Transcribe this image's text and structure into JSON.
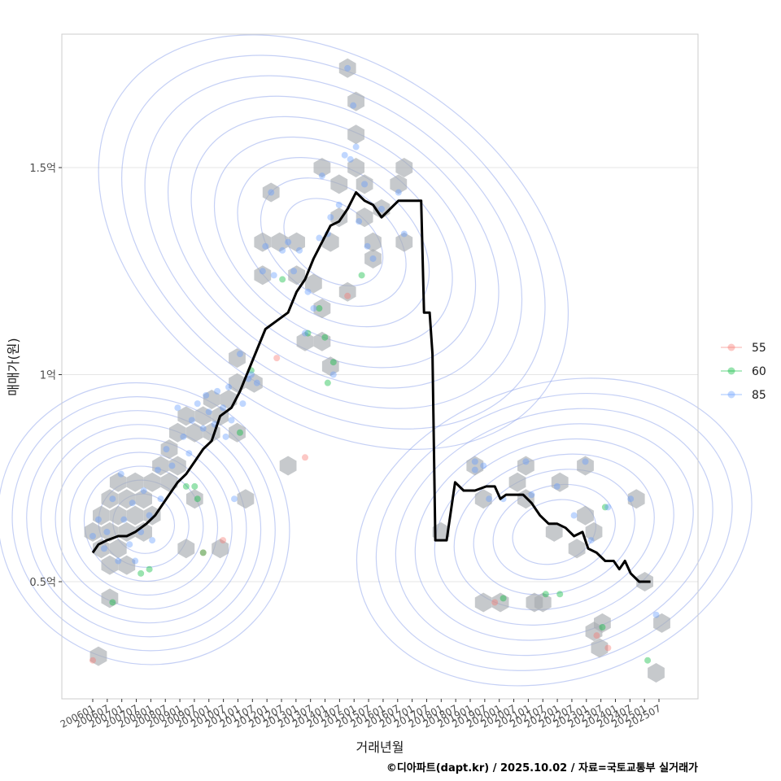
{
  "chart_data": {
    "type": "scatter",
    "xlabel": "거래년월",
    "ylabel": "매매가(원)",
    "caption": "©디아파트(dapt.kr) / 2025.10.02 / 자료=국토교통부 실거래가",
    "y_ticks": [
      {
        "value": 0.5,
        "label": "0.5억"
      },
      {
        "value": 1.0,
        "label": "1억"
      },
      {
        "value": 1.5,
        "label": "1.5억"
      }
    ],
    "x_ticks": [
      "200601",
      "200607",
      "200701",
      "200707",
      "200801",
      "200807",
      "200901",
      "200907",
      "201001",
      "201007",
      "201101",
      "201107",
      "201201",
      "201207",
      "201301",
      "201307",
      "201401",
      "201407",
      "201501",
      "201507",
      "201601",
      "201607",
      "201701",
      "201707",
      "201801",
      "201807",
      "201901",
      "201907",
      "202001",
      "202007",
      "202101",
      "202107",
      "202201",
      "202207",
      "202301",
      "202307",
      "202401",
      "202407",
      "202501",
      "202507"
    ],
    "legend": [
      {
        "label": "55",
        "color": "#f8766d"
      },
      {
        "label": "60",
        "color": "#00ba38"
      },
      {
        "label": "85",
        "color": "#619cff"
      }
    ],
    "colors": {
      "line": "#000000",
      "hex": "#a8acb0",
      "contour": "#7f96e8",
      "grid": "#e5e5e5",
      "panel_border": "#cccccc"
    },
    "series_line": {
      "name": "월별 대표 매매가 추세",
      "points": [
        [
          2006.0,
          0.57
        ],
        [
          2006.2,
          0.59
        ],
        [
          2006.5,
          0.6
        ],
        [
          2006.9,
          0.61
        ],
        [
          2007.2,
          0.61
        ],
        [
          2007.5,
          0.62
        ],
        [
          2007.9,
          0.64
        ],
        [
          2008.2,
          0.66
        ],
        [
          2008.5,
          0.69
        ],
        [
          2008.8,
          0.72
        ],
        [
          2009.0,
          0.74
        ],
        [
          2009.3,
          0.76
        ],
        [
          2009.6,
          0.79
        ],
        [
          2009.9,
          0.82
        ],
        [
          2010.2,
          0.84
        ],
        [
          2010.5,
          0.9
        ],
        [
          2010.9,
          0.92
        ],
        [
          2011.2,
          0.96
        ],
        [
          2011.5,
          1.01
        ],
        [
          2011.8,
          1.06
        ],
        [
          2012.1,
          1.11
        ],
        [
          2012.5,
          1.13
        ],
        [
          2012.9,
          1.15
        ],
        [
          2013.2,
          1.2
        ],
        [
          2013.5,
          1.23
        ],
        [
          2013.8,
          1.28
        ],
        [
          2014.1,
          1.32
        ],
        [
          2014.4,
          1.36
        ],
        [
          2014.7,
          1.37
        ],
        [
          2015.0,
          1.4
        ],
        [
          2015.3,
          1.44
        ],
        [
          2015.6,
          1.42
        ],
        [
          2015.9,
          1.41
        ],
        [
          2016.2,
          1.38
        ],
        [
          2016.5,
          1.4
        ],
        [
          2016.8,
          1.42
        ],
        [
          2017.1,
          1.42
        ],
        [
          2017.4,
          1.42
        ],
        [
          2017.6,
          1.42
        ],
        [
          2017.7,
          1.15
        ],
        [
          2017.9,
          1.15
        ],
        [
          2018.0,
          1.05
        ],
        [
          2018.1,
          0.6
        ],
        [
          2018.5,
          0.6
        ],
        [
          2018.8,
          0.74
        ],
        [
          2019.1,
          0.72
        ],
        [
          2019.5,
          0.72
        ],
        [
          2019.9,
          0.73
        ],
        [
          2020.2,
          0.73
        ],
        [
          2020.4,
          0.7
        ],
        [
          2020.6,
          0.71
        ],
        [
          2020.9,
          0.71
        ],
        [
          2021.2,
          0.71
        ],
        [
          2021.5,
          0.69
        ],
        [
          2021.8,
          0.66
        ],
        [
          2022.1,
          0.64
        ],
        [
          2022.4,
          0.64
        ],
        [
          2022.7,
          0.63
        ],
        [
          2023.0,
          0.61
        ],
        [
          2023.3,
          0.62
        ],
        [
          2023.5,
          0.58
        ],
        [
          2023.8,
          0.57
        ],
        [
          2024.1,
          0.55
        ],
        [
          2024.4,
          0.55
        ],
        [
          2024.6,
          0.53
        ],
        [
          2024.8,
          0.55
        ],
        [
          2025.0,
          0.52
        ],
        [
          2025.3,
          0.5
        ],
        [
          2025.7,
          0.5
        ]
      ]
    },
    "hexbins": [
      [
        2006.0,
        0.62
      ],
      [
        2006.3,
        0.66
      ],
      [
        2006.3,
        0.58
      ],
      [
        2006.6,
        0.7
      ],
      [
        2006.6,
        0.62
      ],
      [
        2006.6,
        0.54
      ],
      [
        2006.9,
        0.74
      ],
      [
        2006.9,
        0.66
      ],
      [
        2006.9,
        0.58
      ],
      [
        2007.2,
        0.7
      ],
      [
        2007.2,
        0.62
      ],
      [
        2007.2,
        0.54
      ],
      [
        2007.5,
        0.74
      ],
      [
        2007.5,
        0.66
      ],
      [
        2007.8,
        0.7
      ],
      [
        2007.8,
        0.62
      ],
      [
        2008.1,
        0.74
      ],
      [
        2008.1,
        0.66
      ],
      [
        2008.4,
        0.78
      ],
      [
        2008.7,
        0.82
      ],
      [
        2008.7,
        0.74
      ],
      [
        2009.0,
        0.86
      ],
      [
        2009.0,
        0.78
      ],
      [
        2009.3,
        0.9
      ],
      [
        2009.6,
        0.86
      ],
      [
        2009.9,
        0.9
      ],
      [
        2010.2,
        0.94
      ],
      [
        2010.2,
        0.86
      ],
      [
        2010.5,
        0.9
      ],
      [
        2010.8,
        0.94
      ],
      [
        2011.1,
        0.98
      ],
      [
        2011.1,
        0.86
      ],
      [
        2009.3,
        0.58
      ],
      [
        2009.6,
        0.7
      ],
      [
        2010.5,
        0.58
      ],
      [
        2011.1,
        1.04
      ],
      [
        2011.4,
        0.7
      ],
      [
        2011.7,
        0.98
      ],
      [
        2012.0,
        1.24
      ],
      [
        2012.0,
        1.32
      ],
      [
        2012.3,
        1.44
      ],
      [
        2012.6,
        1.32
      ],
      [
        2012.9,
        0.78
      ],
      [
        2013.2,
        1.32
      ],
      [
        2013.2,
        1.24
      ],
      [
        2013.5,
        1.08
      ],
      [
        2013.8,
        1.22
      ],
      [
        2014.1,
        1.5
      ],
      [
        2014.1,
        1.16
      ],
      [
        2014.1,
        1.08
      ],
      [
        2014.4,
        1.32
      ],
      [
        2014.4,
        1.02
      ],
      [
        2014.7,
        1.46
      ],
      [
        2014.7,
        1.38
      ],
      [
        2015.0,
        1.2
      ],
      [
        2015.0,
        1.74
      ],
      [
        2015.3,
        1.66
      ],
      [
        2015.3,
        1.58
      ],
      [
        2015.3,
        1.5
      ],
      [
        2015.6,
        1.46
      ],
      [
        2015.6,
        1.38
      ],
      [
        2015.9,
        1.32
      ],
      [
        2015.9,
        1.28
      ],
      [
        2016.2,
        1.4
      ],
      [
        2017.0,
        1.5
      ],
      [
        2017.0,
        1.32
      ],
      [
        2016.8,
        1.46
      ],
      [
        2018.3,
        0.62
      ],
      [
        2019.5,
        0.78
      ],
      [
        2019.8,
        0.7
      ],
      [
        2019.8,
        0.45
      ],
      [
        2020.4,
        0.45
      ],
      [
        2021.0,
        0.74
      ],
      [
        2021.3,
        0.78
      ],
      [
        2021.3,
        0.7
      ],
      [
        2021.6,
        0.45
      ],
      [
        2021.9,
        0.45
      ],
      [
        2022.3,
        0.62
      ],
      [
        2022.5,
        0.74
      ],
      [
        2023.1,
        0.58
      ],
      [
        2023.4,
        0.66
      ],
      [
        2023.4,
        0.78
      ],
      [
        2023.7,
        0.62
      ],
      [
        2023.7,
        0.38
      ],
      [
        2023.9,
        0.34
      ],
      [
        2024.0,
        0.4
      ],
      [
        2025.2,
        0.7
      ],
      [
        2025.5,
        0.5
      ],
      [
        2026.1,
        0.4
      ],
      [
        2025.9,
        0.28
      ],
      [
        2006.2,
        0.32
      ],
      [
        2006.6,
        0.46
      ]
    ],
    "points": [
      {
        "x": 2006.0,
        "y": 0.31,
        "type": "55"
      },
      {
        "x": 2009.9,
        "y": 0.57,
        "type": "55"
      },
      {
        "x": 2010.6,
        "y": 0.6,
        "type": "55"
      },
      {
        "x": 2012.5,
        "y": 1.04,
        "type": "55"
      },
      {
        "x": 2013.5,
        "y": 0.8,
        "type": "55"
      },
      {
        "x": 2015.0,
        "y": 1.19,
        "type": "55"
      },
      {
        "x": 2020.2,
        "y": 0.45,
        "type": "55"
      },
      {
        "x": 2023.8,
        "y": 0.37,
        "type": "55"
      },
      {
        "x": 2024.2,
        "y": 0.34,
        "type": "55"
      },
      {
        "x": 2006.7,
        "y": 0.45,
        "type": "60"
      },
      {
        "x": 2007.7,
        "y": 0.52,
        "type": "60"
      },
      {
        "x": 2008.0,
        "y": 0.53,
        "type": "60"
      },
      {
        "x": 2009.3,
        "y": 0.73,
        "type": "60"
      },
      {
        "x": 2009.6,
        "y": 0.73,
        "type": "60"
      },
      {
        "x": 2009.7,
        "y": 0.7,
        "type": "60"
      },
      {
        "x": 2009.9,
        "y": 0.57,
        "type": "60"
      },
      {
        "x": 2011.2,
        "y": 0.86,
        "type": "60"
      },
      {
        "x": 2011.6,
        "y": 1.01,
        "type": "60"
      },
      {
        "x": 2012.7,
        "y": 1.23,
        "type": "60"
      },
      {
        "x": 2013.6,
        "y": 1.1,
        "type": "60"
      },
      {
        "x": 2014.0,
        "y": 1.16,
        "type": "60"
      },
      {
        "x": 2014.2,
        "y": 1.09,
        "type": "60"
      },
      {
        "x": 2014.3,
        "y": 0.98,
        "type": "60"
      },
      {
        "x": 2014.5,
        "y": 1.03,
        "type": "60"
      },
      {
        "x": 2015.5,
        "y": 1.24,
        "type": "60"
      },
      {
        "x": 2020.5,
        "y": 0.46,
        "type": "60"
      },
      {
        "x": 2022.0,
        "y": 0.47,
        "type": "60"
      },
      {
        "x": 2022.5,
        "y": 0.47,
        "type": "60"
      },
      {
        "x": 2024.0,
        "y": 0.39,
        "type": "60"
      },
      {
        "x": 2024.1,
        "y": 0.68,
        "type": "60"
      },
      {
        "x": 2025.6,
        "y": 0.31,
        "type": "60"
      },
      {
        "x": 2006.0,
        "y": 0.61,
        "type": "85"
      },
      {
        "x": 2006.2,
        "y": 0.65,
        "type": "85"
      },
      {
        "x": 2006.4,
        "y": 0.58,
        "type": "85"
      },
      {
        "x": 2006.5,
        "y": 0.62,
        "type": "85"
      },
      {
        "x": 2006.7,
        "y": 0.7,
        "type": "85"
      },
      {
        "x": 2006.9,
        "y": 0.55,
        "type": "85"
      },
      {
        "x": 2007.0,
        "y": 0.76,
        "type": "85"
      },
      {
        "x": 2007.1,
        "y": 0.65,
        "type": "85"
      },
      {
        "x": 2007.3,
        "y": 0.59,
        "type": "85"
      },
      {
        "x": 2007.4,
        "y": 0.69,
        "type": "85"
      },
      {
        "x": 2007.5,
        "y": 0.55,
        "type": "85"
      },
      {
        "x": 2007.7,
        "y": 0.62,
        "type": "85"
      },
      {
        "x": 2007.8,
        "y": 0.72,
        "type": "85"
      },
      {
        "x": 2008.0,
        "y": 0.66,
        "type": "85"
      },
      {
        "x": 2008.1,
        "y": 0.6,
        "type": "85"
      },
      {
        "x": 2008.3,
        "y": 0.77,
        "type": "85"
      },
      {
        "x": 2008.4,
        "y": 0.7,
        "type": "85"
      },
      {
        "x": 2008.6,
        "y": 0.82,
        "type": "85"
      },
      {
        "x": 2008.8,
        "y": 0.78,
        "type": "85"
      },
      {
        "x": 2009.0,
        "y": 0.92,
        "type": "85"
      },
      {
        "x": 2009.2,
        "y": 0.85,
        "type": "85"
      },
      {
        "x": 2009.4,
        "y": 0.81,
        "type": "85"
      },
      {
        "x": 2009.5,
        "y": 0.89,
        "type": "85"
      },
      {
        "x": 2009.7,
        "y": 0.93,
        "type": "85"
      },
      {
        "x": 2009.9,
        "y": 0.87,
        "type": "85"
      },
      {
        "x": 2010.0,
        "y": 0.95,
        "type": "85"
      },
      {
        "x": 2010.1,
        "y": 0.91,
        "type": "85"
      },
      {
        "x": 2010.3,
        "y": 0.88,
        "type": "85"
      },
      {
        "x": 2010.4,
        "y": 0.96,
        "type": "85"
      },
      {
        "x": 2010.6,
        "y": 0.92,
        "type": "85"
      },
      {
        "x": 2010.7,
        "y": 0.85,
        "type": "85"
      },
      {
        "x": 2010.8,
        "y": 0.97,
        "type": "85"
      },
      {
        "x": 2010.9,
        "y": 0.89,
        "type": "85"
      },
      {
        "x": 2011.0,
        "y": 0.7,
        "type": "85"
      },
      {
        "x": 2011.2,
        "y": 1.05,
        "type": "85"
      },
      {
        "x": 2011.3,
        "y": 0.93,
        "type": "85"
      },
      {
        "x": 2011.5,
        "y": 0.99,
        "type": "85"
      },
      {
        "x": 2011.6,
        "y": 1.0,
        "type": "85"
      },
      {
        "x": 2011.8,
        "y": 0.98,
        "type": "85"
      },
      {
        "x": 2012.0,
        "y": 1.25,
        "type": "85"
      },
      {
        "x": 2012.1,
        "y": 1.31,
        "type": "85"
      },
      {
        "x": 2012.3,
        "y": 1.44,
        "type": "85"
      },
      {
        "x": 2012.4,
        "y": 1.24,
        "type": "85"
      },
      {
        "x": 2012.7,
        "y": 1.3,
        "type": "85"
      },
      {
        "x": 2012.9,
        "y": 1.32,
        "type": "85"
      },
      {
        "x": 2013.1,
        "y": 1.25,
        "type": "85"
      },
      {
        "x": 2013.3,
        "y": 1.3,
        "type": "85"
      },
      {
        "x": 2013.5,
        "y": 1.1,
        "type": "85"
      },
      {
        "x": 2013.6,
        "y": 1.2,
        "type": "85"
      },
      {
        "x": 2013.8,
        "y": 1.16,
        "type": "85"
      },
      {
        "x": 2014.0,
        "y": 1.33,
        "type": "85"
      },
      {
        "x": 2014.1,
        "y": 1.48,
        "type": "85"
      },
      {
        "x": 2014.3,
        "y": 1.34,
        "type": "85"
      },
      {
        "x": 2014.4,
        "y": 1.38,
        "type": "85"
      },
      {
        "x": 2014.5,
        "y": 1.0,
        "type": "85"
      },
      {
        "x": 2014.7,
        "y": 1.41,
        "type": "85"
      },
      {
        "x": 2014.9,
        "y": 1.53,
        "type": "85"
      },
      {
        "x": 2015.0,
        "y": 1.74,
        "type": "85"
      },
      {
        "x": 2015.1,
        "y": 1.52,
        "type": "85"
      },
      {
        "x": 2015.2,
        "y": 1.65,
        "type": "85"
      },
      {
        "x": 2015.3,
        "y": 1.55,
        "type": "85"
      },
      {
        "x": 2015.4,
        "y": 1.37,
        "type": "85"
      },
      {
        "x": 2015.6,
        "y": 1.46,
        "type": "85"
      },
      {
        "x": 2015.7,
        "y": 1.31,
        "type": "85"
      },
      {
        "x": 2015.9,
        "y": 1.28,
        "type": "85"
      },
      {
        "x": 2016.2,
        "y": 1.4,
        "type": "85"
      },
      {
        "x": 2016.8,
        "y": 1.44,
        "type": "85"
      },
      {
        "x": 2017.0,
        "y": 1.34,
        "type": "85"
      },
      {
        "x": 2019.5,
        "y": 0.77,
        "type": "85"
      },
      {
        "x": 2019.5,
        "y": 0.79,
        "type": "85"
      },
      {
        "x": 2019.8,
        "y": 0.78,
        "type": "85"
      },
      {
        "x": 2020.0,
        "y": 0.7,
        "type": "85"
      },
      {
        "x": 2020.5,
        "y": 0.7,
        "type": "85"
      },
      {
        "x": 2021.3,
        "y": 0.79,
        "type": "85"
      },
      {
        "x": 2021.5,
        "y": 0.71,
        "type": "85"
      },
      {
        "x": 2022.4,
        "y": 0.73,
        "type": "85"
      },
      {
        "x": 2023.0,
        "y": 0.66,
        "type": "85"
      },
      {
        "x": 2023.4,
        "y": 0.79,
        "type": "85"
      },
      {
        "x": 2023.6,
        "y": 0.6,
        "type": "85"
      },
      {
        "x": 2024.2,
        "y": 0.68,
        "type": "85"
      },
      {
        "x": 2025.0,
        "y": 0.7,
        "type": "85"
      },
      {
        "x": 2025.9,
        "y": 0.42,
        "type": "85"
      }
    ],
    "density_peaks": [
      {
        "cx": 2007.8,
        "cy": 0.64,
        "rx": 2.2,
        "ry": 0.16,
        "angle": -62
      },
      {
        "cx": 2014.5,
        "cy": 1.32,
        "rx": 2.8,
        "ry": 0.28,
        "angle": -55
      },
      {
        "cx": 2022.3,
        "cy": 0.62,
        "rx": 3.2,
        "ry": 0.16,
        "angle": -18
      }
    ]
  }
}
